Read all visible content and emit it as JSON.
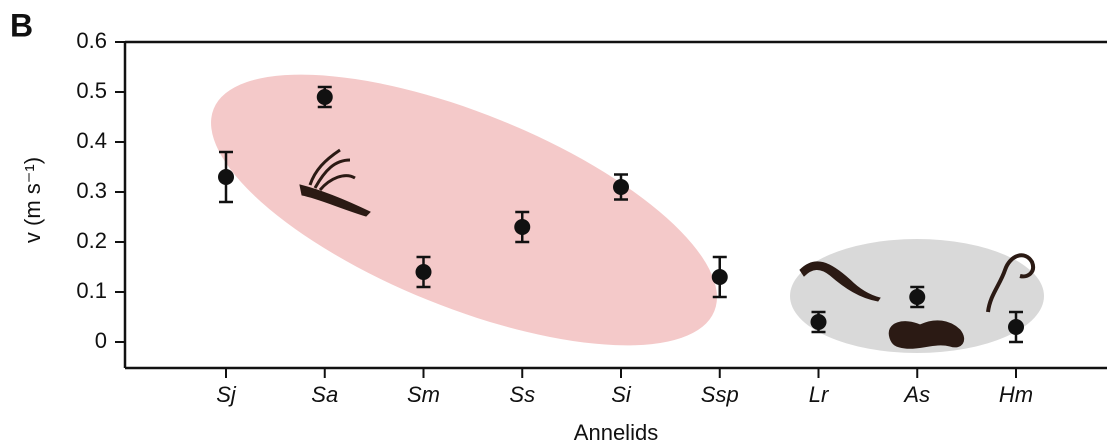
{
  "chart_data": {
    "type": "scatter",
    "panel_label": "B",
    "x_label": "Annelids",
    "y_label": "v (m s⁻¹)",
    "categories": [
      "Sj",
      "Sa",
      "Sm",
      "Ss",
      "Si",
      "Ssp",
      "Lr",
      "As",
      "Hm"
    ],
    "values": [
      0.33,
      0.49,
      0.14,
      0.23,
      0.31,
      0.13,
      0.04,
      0.09,
      0.03
    ],
    "errors": [
      0.05,
      0.02,
      0.03,
      0.03,
      0.025,
      0.04,
      0.02,
      0.02,
      0.03
    ],
    "color": "#111111",
    "ylim": [
      -0.052,
      0.6
    ],
    "yticks": [
      0,
      0.1,
      0.2,
      0.3,
      0.4,
      0.5,
      0.6
    ]
  }
}
